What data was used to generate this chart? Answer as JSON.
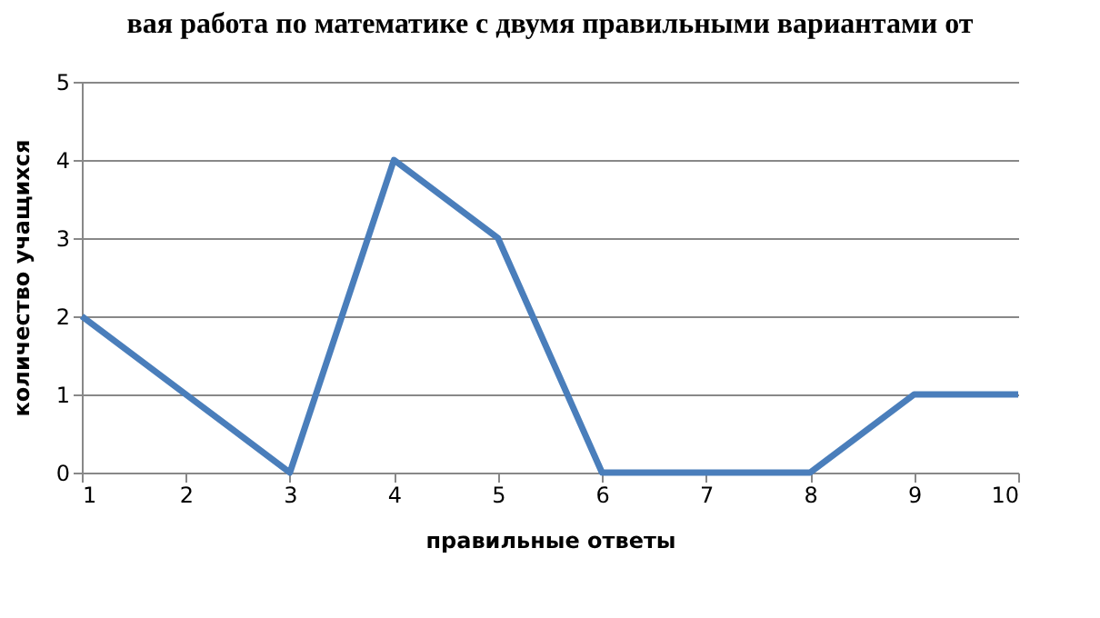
{
  "chart_data": {
    "type": "line",
    "title": "вая работа по математике с двумя правильными вариантами от",
    "xlabel": "правильные ответы",
    "ylabel": "количество учащихся",
    "x": [
      1,
      2,
      3,
      4,
      5,
      6,
      7,
      8,
      9,
      10
    ],
    "series": [
      {
        "color": "#4a7ebb",
        "values": [
          2,
          1,
          0,
          4,
          3,
          0,
          0,
          0,
          1,
          1
        ]
      }
    ],
    "xlim": [
      1,
      10
    ],
    "xticks": [
      1,
      2,
      3,
      4,
      5,
      6,
      7,
      8,
      9,
      10
    ],
    "ylim": [
      0,
      5
    ],
    "yticks": [
      0,
      1,
      2,
      3,
      4,
      5
    ],
    "grid": "y",
    "legend": false,
    "marker": "none",
    "line_style": "solid"
  }
}
